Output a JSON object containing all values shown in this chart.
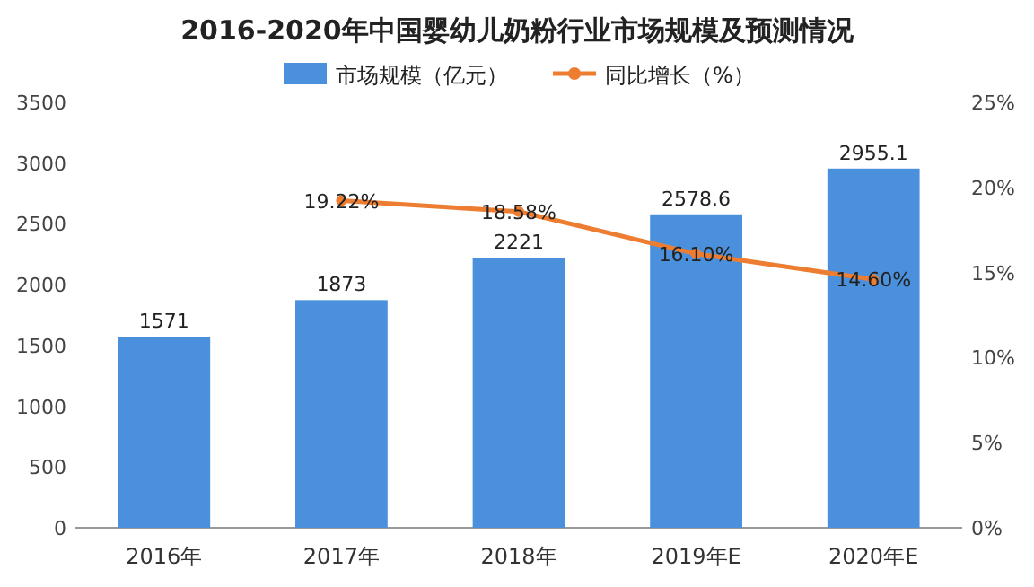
{
  "chart_data": {
    "type": "bar",
    "title": "2016-2020年中国婴幼儿奶粉行业市场规模及预测情况",
    "categories": [
      "2016年",
      "2017年",
      "2018年",
      "2019年E",
      "2020年E"
    ],
    "series": [
      {
        "name": "市场规模（亿元）",
        "color": "#4a90dc",
        "values": [
          1571,
          1873,
          2221,
          2578.6,
          2955.1
        ],
        "value_labels": [
          "1571",
          "1873",
          "2221",
          "2578.6",
          "2955.1"
        ]
      },
      {
        "name": "同比增长（%）",
        "type": "line",
        "axis": "y2",
        "color": "#ed7d31",
        "marker": "circle",
        "values": [
          null,
          19.22,
          18.58,
          16.1,
          14.6
        ],
        "value_labels": [
          null,
          "19.22%",
          "18.58%",
          "16.10%",
          "14.60%"
        ]
      }
    ],
    "ylim": [
      0,
      3500
    ],
    "yticks": [
      0,
      500,
      1000,
      1500,
      2000,
      2500,
      3000,
      3500
    ],
    "y2lim": [
      0,
      25
    ],
    "y2ticks": [
      {
        "value": 0,
        "label": "0%"
      },
      {
        "value": 5,
        "label": "5%"
      },
      {
        "value": 10,
        "label": "10%"
      },
      {
        "value": 15,
        "label": "15%"
      },
      {
        "value": 20,
        "label": "20%"
      },
      {
        "value": 25,
        "label": "25%"
      }
    ],
    "legend": "top",
    "grid": false
  }
}
